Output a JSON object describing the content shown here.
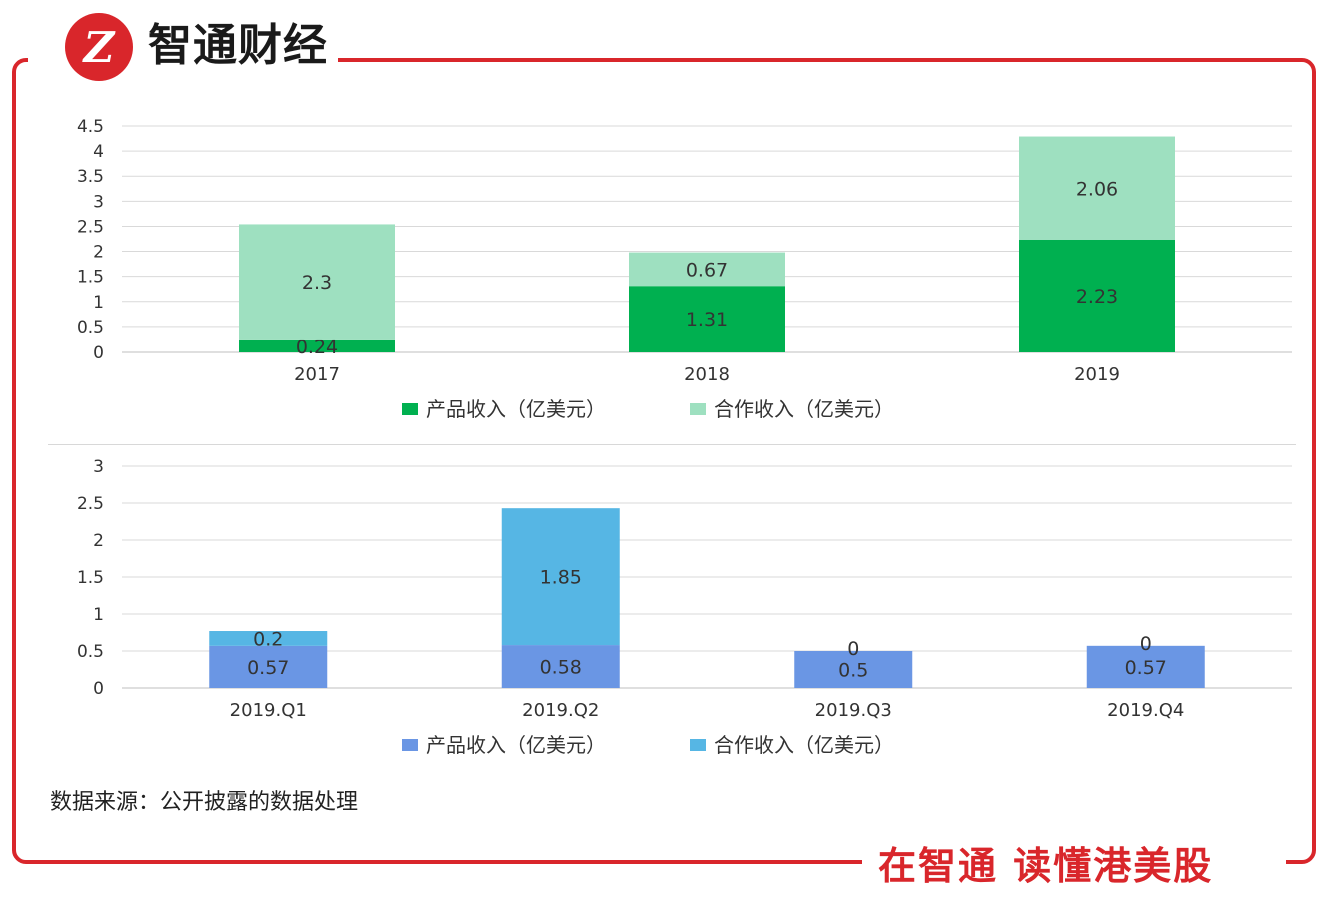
{
  "brand": {
    "name": "智通财经",
    "slogan": "在智通 读懂港美股",
    "logo_text": "Z"
  },
  "colors": {
    "frame": "#d9262b",
    "product_annual": "#00b050",
    "coop_annual": "#9ee0c0",
    "product_quarter": "#6a96e4",
    "coop_quarter": "#56b6e4"
  },
  "source_note": "数据来源：公开披露的数据处理",
  "chart_data": [
    {
      "type": "bar",
      "stacked": true,
      "categories": [
        "2017",
        "2018",
        "2019"
      ],
      "series": [
        {
          "name": "产品收入（亿美元）",
          "values": [
            0.24,
            1.31,
            2.23
          ],
          "labels": [
            "0.24",
            "1.31",
            "2.23"
          ],
          "color": "#00b050"
        },
        {
          "name": "合作收入（亿美元）",
          "values": [
            2.3,
            0.67,
            2.06
          ],
          "labels": [
            "2.3",
            "0.67",
            "2.06"
          ],
          "color": "#9ee0c0"
        }
      ],
      "yticks": [
        "0",
        "0.5",
        "1",
        "1.5",
        "2",
        "2.5",
        "3",
        "3.5",
        "4",
        "4.5"
      ],
      "ylim": [
        0,
        4.5
      ],
      "legend": "bottom"
    },
    {
      "type": "bar",
      "stacked": true,
      "categories": [
        "2019.Q1",
        "2019.Q2",
        "2019.Q3",
        "2019.Q4"
      ],
      "series": [
        {
          "name": "产品收入（亿美元）",
          "values": [
            0.57,
            0.58,
            0.5,
            0.57
          ],
          "labels": [
            "0.57",
            "0.58",
            "0.5",
            "0.57"
          ],
          "color": "#6a96e4"
        },
        {
          "name": "合作收入（亿美元）",
          "values": [
            0.2,
            1.85,
            0,
            0
          ],
          "labels": [
            "0.2",
            "1.85",
            "0",
            "0"
          ],
          "color": "#56b6e4"
        }
      ],
      "yticks": [
        "0",
        "0.5",
        "1",
        "1.5",
        "2",
        "2.5",
        "3"
      ],
      "ylim": [
        0,
        3
      ],
      "legend": "bottom"
    }
  ]
}
